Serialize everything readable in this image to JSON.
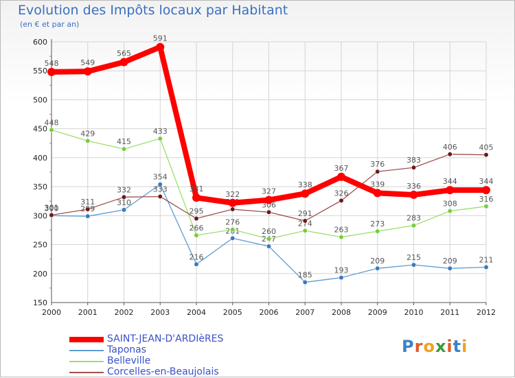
{
  "header": {
    "title": "Evolution des Impôts locaux par Habitant",
    "subtitle": "(en € et par an)"
  },
  "colors": {
    "grid": "#d4d4d4",
    "axis": "#555555",
    "tick_text": "#222222",
    "value_text": "#555555",
    "minor_tick": "#e07070"
  },
  "logo": {
    "text": "Proxiti",
    "letter_colors": [
      "#3b82c8",
      "#e05a2a",
      "#f0a020",
      "#3a9a3a",
      "#e05a2a",
      "#3b82c8",
      "#f0a020"
    ]
  },
  "chart_data": {
    "type": "line",
    "categories": [
      "2000",
      "2001",
      "2002",
      "2003",
      "2004",
      "2005",
      "2006",
      "2007",
      "2008",
      "2009",
      "2010",
      "2011",
      "2012"
    ],
    "ylim": [
      150,
      600
    ],
    "yticks": [
      150,
      200,
      250,
      300,
      350,
      400,
      450,
      500,
      550,
      600
    ],
    "grid": true,
    "legend_position": "bottom-left",
    "series": [
      {
        "name": "SAINT-JEAN-D'ARDIèRES",
        "color": "#ff0000",
        "marker_color": "#ff0000",
        "values": [
          548,
          549,
          565,
          591,
          331,
          322,
          327,
          338,
          367,
          339,
          336,
          344,
          344
        ],
        "labels": [
          "548",
          "549",
          "565",
          "591",
          "331",
          "322",
          "327",
          "338",
          "367",
          "339",
          "336",
          "344",
          "344"
        ]
      },
      {
        "name": "Taponas",
        "color": "#5b9bd5",
        "marker_color": "#3a7abf",
        "values": [
          300,
          299,
          310,
          354,
          216,
          261,
          247,
          185,
          193,
          209,
          215,
          209,
          211
        ],
        "labels": [
          "300",
          "299",
          "310",
          "354",
          "216",
          "261",
          "247",
          "185",
          "193",
          "209",
          "215",
          "209",
          "211"
        ]
      },
      {
        "name": "Belleville",
        "color": "#99e06b",
        "marker_color": "#77cc44",
        "values": [
          448,
          429,
          415,
          433,
          266,
          276,
          260,
          274,
          263,
          273,
          283,
          308,
          316
        ],
        "labels": [
          "448",
          "429",
          "415",
          "433",
          "266",
          "276",
          "260",
          "274",
          "263",
          "273",
          "283",
          "308",
          "316"
        ]
      },
      {
        "name": "Corcelles-en-Beaujolais",
        "color": "#a05050",
        "marker_color": "#6a1a1a",
        "values": [
          301,
          311,
          332,
          333,
          295,
          311,
          306,
          291,
          326,
          376,
          383,
          406,
          405
        ],
        "labels": [
          "301",
          "311",
          "332",
          "333",
          "295",
          "311",
          "306",
          "291",
          "326",
          "376",
          "383",
          "406",
          "405"
        ]
      }
    ]
  }
}
